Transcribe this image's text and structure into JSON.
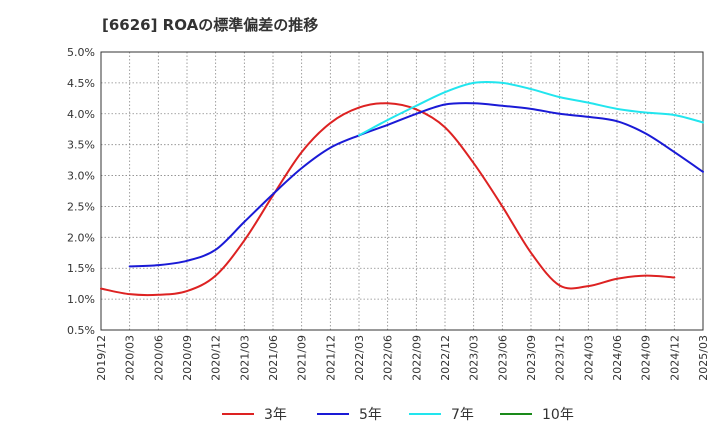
{
  "chart_data": {
    "type": "line",
    "title": "[6626]  ROAの標準偏差の推移",
    "xlabel": "",
    "ylabel": "",
    "ylim": [
      0.5,
      5.0
    ],
    "y_ticks": [
      "0.5%",
      "1.0%",
      "1.5%",
      "2.0%",
      "2.5%",
      "3.0%",
      "3.5%",
      "4.0%",
      "4.5%",
      "5.0%"
    ],
    "x_ticks": [
      "2019/12",
      "2020/03",
      "2020/06",
      "2020/09",
      "2020/12",
      "2021/03",
      "2021/06",
      "2021/09",
      "2021/12",
      "2022/03",
      "2022/06",
      "2022/09",
      "2022/12",
      "2023/03",
      "2023/06",
      "2023/09",
      "2023/12",
      "2024/03",
      "2024/06",
      "2024/09",
      "2024/12",
      "2025/03"
    ],
    "grid": true,
    "legend_position": "bottom",
    "series": [
      {
        "name": "3年",
        "color": "#dd2222",
        "start_index": 0,
        "values": [
          1.17,
          1.08,
          1.07,
          1.13,
          1.38,
          1.95,
          2.68,
          3.38,
          3.85,
          4.1,
          4.17,
          4.07,
          3.78,
          3.2,
          2.5,
          1.75,
          1.22,
          1.21,
          1.33,
          1.38,
          1.35
        ]
      },
      {
        "name": "5年",
        "color": "#1a1ad6",
        "start_index": 1,
        "values": [
          1.53,
          1.55,
          1.62,
          1.8,
          2.25,
          2.7,
          3.12,
          3.45,
          3.65,
          3.82,
          4.0,
          4.15,
          4.17,
          4.13,
          4.08,
          4.0,
          3.95,
          3.88,
          3.68,
          3.38,
          3.06
        ]
      },
      {
        "name": "7年",
        "color": "#22e5ee",
        "start_index": 9,
        "values": [
          3.65,
          3.9,
          4.13,
          4.35,
          4.5,
          4.5,
          4.4,
          4.27,
          4.18,
          4.08,
          4.02,
          3.98,
          3.86
        ]
      },
      {
        "name": "10年",
        "color": "#1a8a1a",
        "start_index": 0,
        "values": []
      }
    ]
  }
}
